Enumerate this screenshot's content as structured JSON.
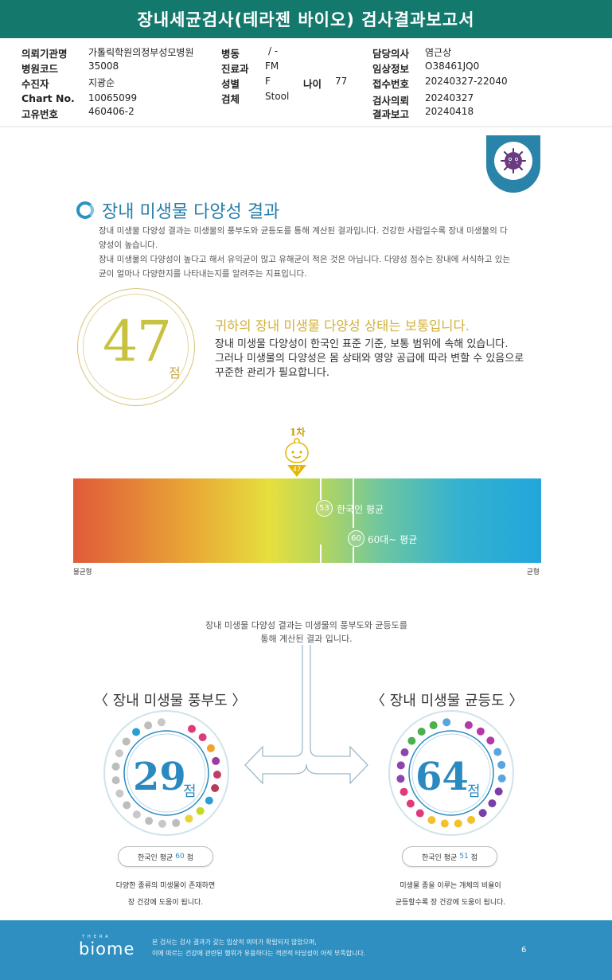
{
  "report_title": "장내세균검사(테라젠 바이오) 검사결과보고서",
  "patient_info": {
    "col1": [
      {
        "label": "의뢰기관명",
        "value": "가톨릭학원의정부성모병원"
      },
      {
        "label": "병원코드",
        "value": "35008"
      },
      {
        "label": "수진자",
        "value": "지광순"
      },
      {
        "label": "Chart No.",
        "value": "10065099"
      },
      {
        "label": "고유번호",
        "value": "460406-2"
      }
    ],
    "col2": [
      {
        "label": "병동",
        "value": "/ -"
      },
      {
        "label": "진료과",
        "value": "FM"
      },
      {
        "label": "성별",
        "value": "F"
      },
      {
        "label": "검체",
        "value": "Stool"
      }
    ],
    "age": {
      "label": "나이",
      "value": "77"
    },
    "col3": [
      {
        "label": "담당의사",
        "value": "염근상"
      },
      {
        "label": "임상정보",
        "value": "O38461JQ0"
      },
      {
        "label": "접수번호",
        "value": "20240327-22040"
      },
      {
        "label": "검사의뢰",
        "value": "20240327"
      },
      {
        "label": "결과보고",
        "value": "20240418"
      }
    ]
  },
  "section": {
    "title": "장내 미생물 다양성 결과",
    "desc_lines": [
      "장내 미생물 다양성 결과는 미생물의 풍부도와 균등도를 통해 계산된 결과입니다. 건강한 사람일수록 장내 미생물의 다",
      "양성이 높습니다.",
      "장내 미생물의 다양성이 높다고 해서 유익균이 많고 유해균이 적은 것은 아닙니다. 다양성 점수는 장내에 서식하고 있는",
      "균이 얼마나 다양한지를 나타내는지를 알려주는 지표입니다."
    ]
  },
  "score": {
    "value": "47",
    "unit": "점",
    "headline": "귀하의 장내 미생물 다양성 상태는 보통입니다.",
    "messages": [
      "장내 미생물 다양성이 한국인 표준 기준, 보통 범위에 속해 있습니다.",
      "그러나 미생물의 다양성은 몸 상태와 영양 공급에 따라 변할 수 있음으로",
      "꾸준한 관리가 필요합니다."
    ]
  },
  "scale": {
    "marker_label": "1차",
    "marker_value": "47",
    "min_label": "불균형",
    "max_label": "균형",
    "korean_avg": {
      "value": "53",
      "label": "한국인 평균",
      "position": 53
    },
    "age_avg": {
      "value": "60",
      "label": "60대~ 평균",
      "position": 60
    },
    "marker_position": 47
  },
  "explanation": [
    "장내 미생물 다양성 결과는 미생물의 풍부도와 균등도를",
    "통해 계산된 결과 입니다."
  ],
  "richness": {
    "title": "〈 장내 미생물 풍부도 〉",
    "score": "29",
    "unit": "점",
    "avg_prefix": "한국인 평균",
    "avg_value": "60",
    "avg_suffix": "점",
    "caption": [
      "다양한 종류의 미생물이 존재하면",
      "장 건강에 도움이 됩니다."
    ]
  },
  "evenness": {
    "title": "〈 장내 미생물 균등도 〉",
    "score": "64",
    "unit": "점",
    "avg_prefix": "한국인 평균",
    "avg_value": "51",
    "avg_suffix": "점",
    "caption": [
      "미생물 종을 이루는 개체의 비율이",
      "균등할수록 장 건강에 도움이 됩니다."
    ]
  },
  "footer": {
    "logo_top": "THERA",
    "logo": "biome",
    "notes": [
      "본 검사는 검사 결과가 갖는 임상적 의미가 확립되지 않았으며,",
      "이에 따르는 건강에 관련된 행위가 유용하다는 객관적 타당성이 아직 부족합니다."
    ],
    "page": "6"
  },
  "colors": {
    "title_bar": "#14796d",
    "accent_blue": "#2a8ac0",
    "score_yellow": "#c8c241",
    "footer": "#2f8fc0"
  }
}
